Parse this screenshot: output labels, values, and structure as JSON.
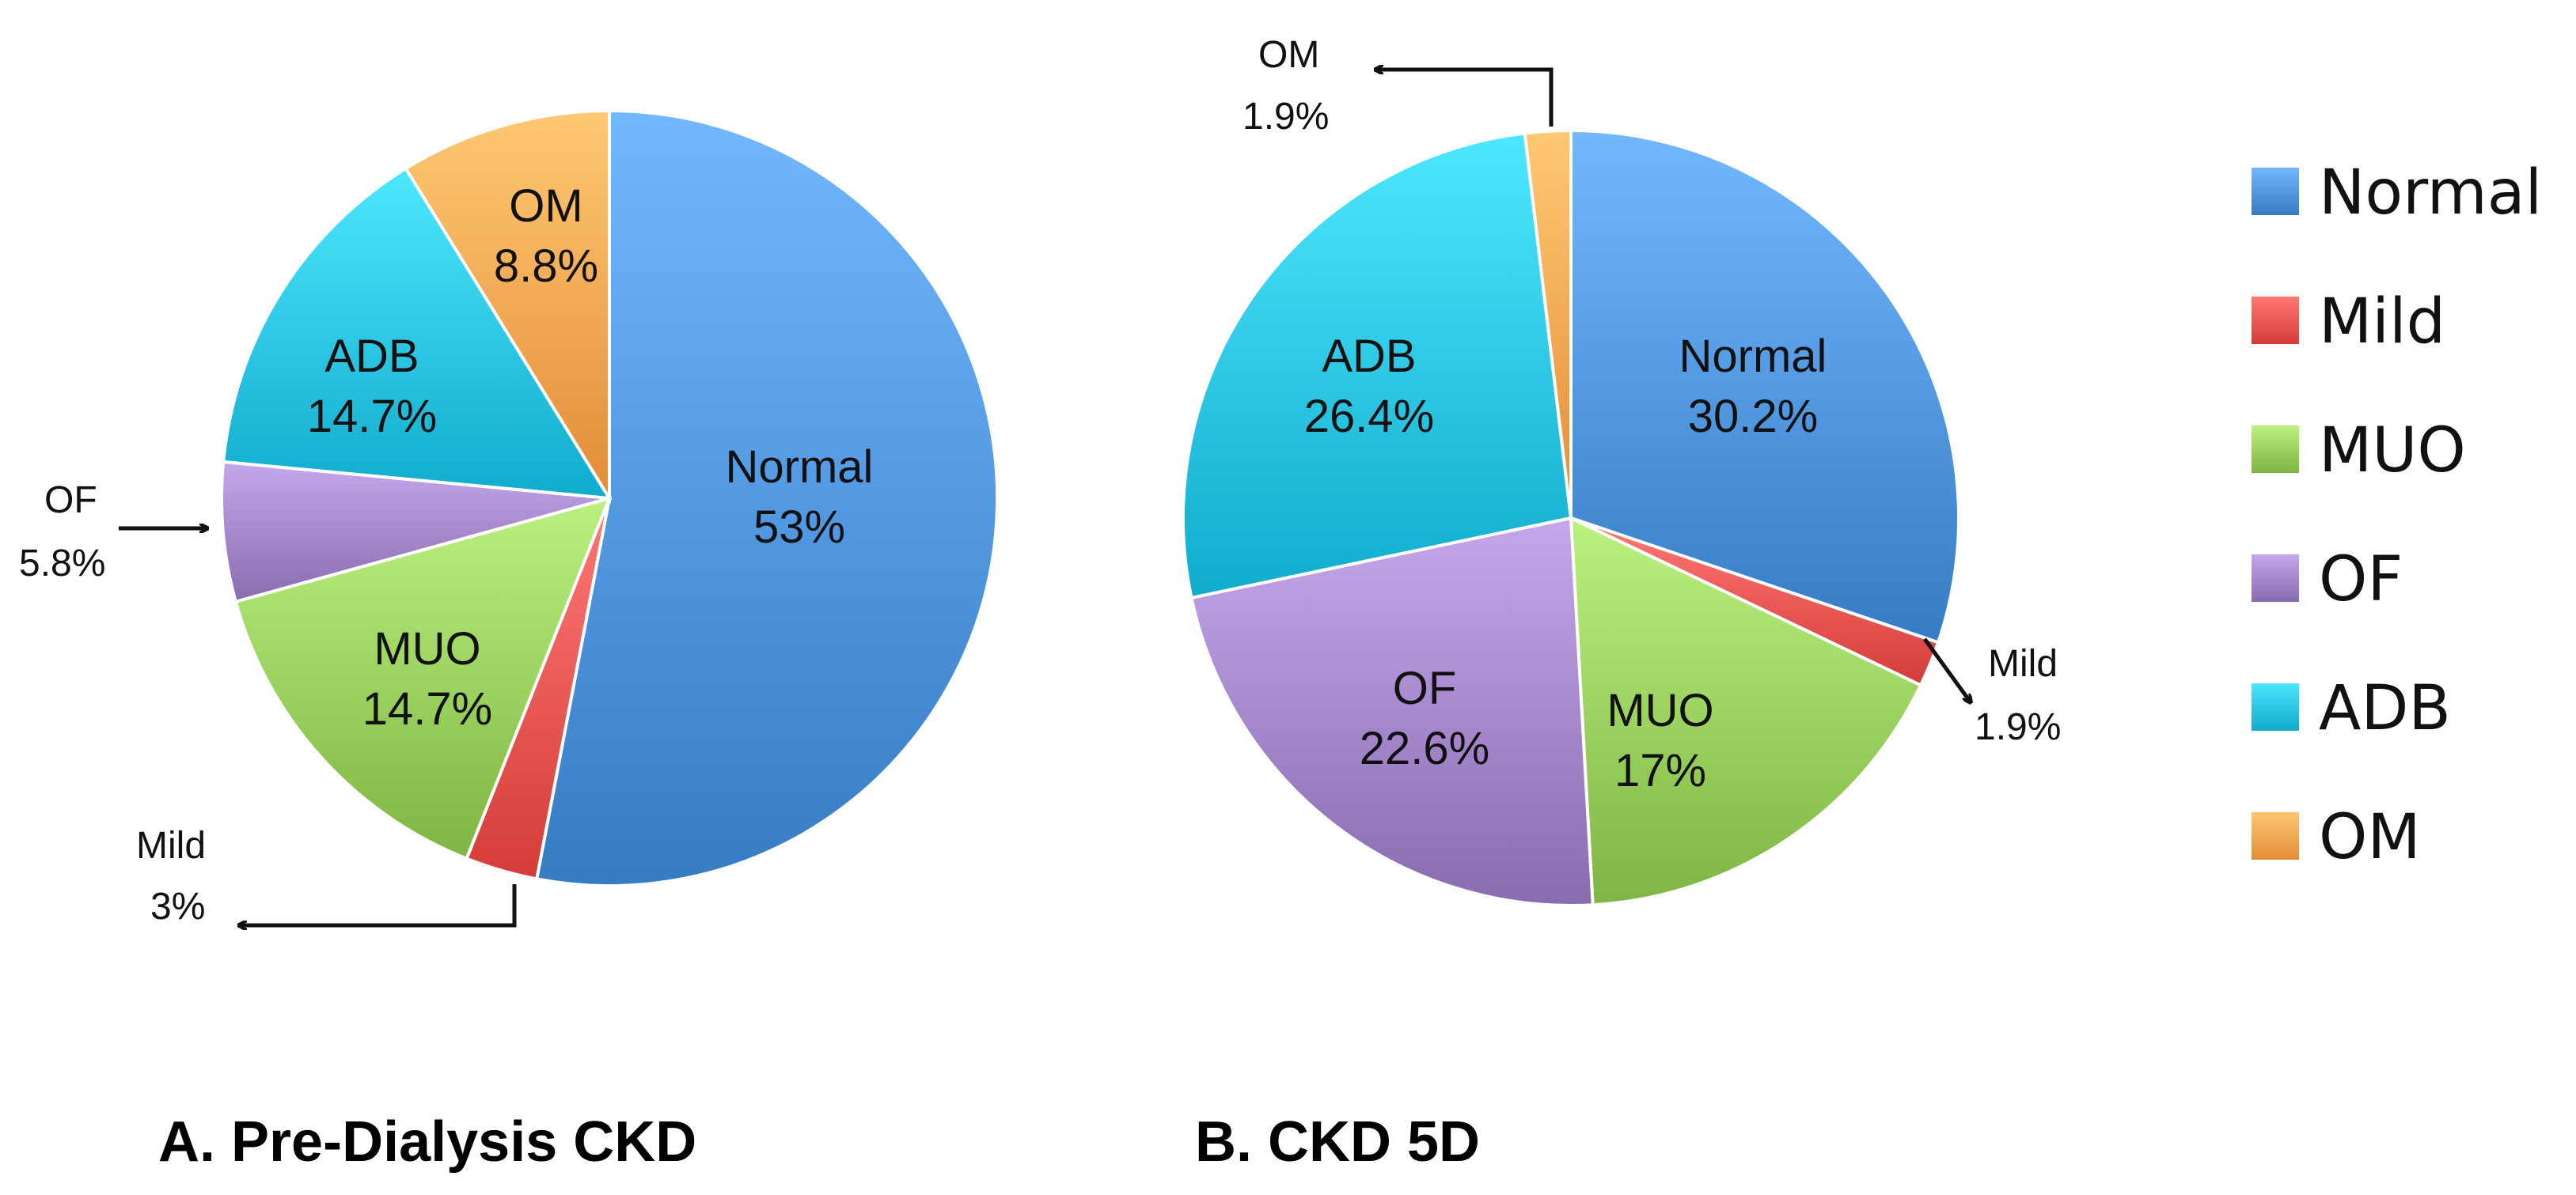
{
  "chart_data": [
    {
      "type": "pie",
      "title": "A.  Pre-Dialysis CKD",
      "categories": [
        "Normal",
        "Mild",
        "MUO",
        "OF",
        "ADB",
        "OM"
      ],
      "values": [
        53,
        3,
        14.7,
        5.8,
        14.7,
        8.8
      ],
      "labels": [
        "53%",
        "3%",
        "14.7%",
        "5.8%",
        "14.7%",
        "8.8%"
      ],
      "start_angle_deg": 0,
      "direction": "clockwise",
      "external_labels": [
        "Mild",
        "OF"
      ]
    },
    {
      "type": "pie",
      "title": "B. CKD 5D",
      "categories": [
        "Normal",
        "Mild",
        "MUO",
        "OF",
        "ADB",
        "OM"
      ],
      "values": [
        30.2,
        1.9,
        17,
        22.6,
        26.4,
        1.9
      ],
      "labels": [
        "30.2%",
        "1.9%",
        "17%",
        "22.6%",
        "26.4%",
        "1.9%"
      ],
      "start_angle_deg": 0,
      "direction": "clockwise",
      "external_labels": [
        "Mild",
        "OM"
      ]
    }
  ],
  "legend": {
    "position": "right",
    "items": [
      {
        "label": "Normal",
        "color": "#4a90d9"
      },
      {
        "label": "Mild",
        "color": "#e8504d"
      },
      {
        "label": "MUO",
        "color": "#93c957"
      },
      {
        "label": "OF",
        "color": "#9d7fc4"
      },
      {
        "label": "ADB",
        "color": "#25bfe0"
      },
      {
        "label": "OM",
        "color": "#f7a04b"
      }
    ]
  }
}
